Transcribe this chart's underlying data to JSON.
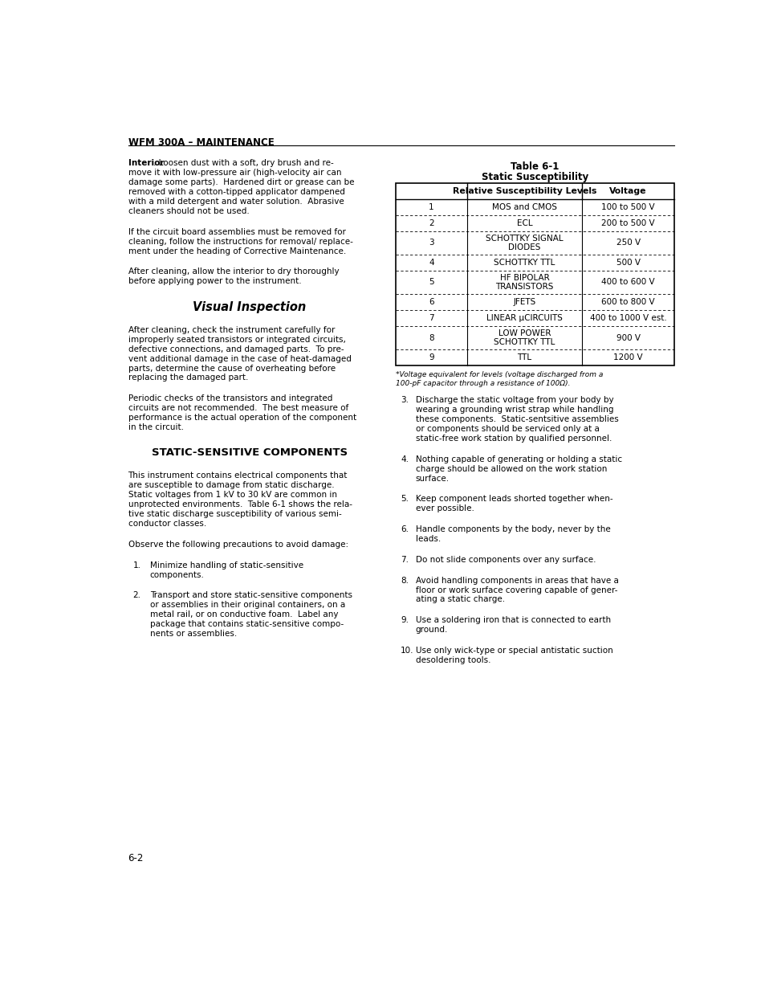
{
  "page_width": 9.54,
  "page_height": 12.35,
  "background_color": "#ffffff",
  "header": "WFM 300A – MAINTENANCE",
  "page_number": "6-2",
  "table_title": "Table 6-1",
  "table_subtitle": "Static Susceptibility",
  "table_col1_header": "Relative Susceptibility Levels",
  "table_col2_header": "Voltage",
  "table_rows": [
    [
      "1",
      "MOS and CMOS",
      "100 to 500 V"
    ],
    [
      "2",
      "ECL",
      "200 to 500 V"
    ],
    [
      "3",
      "SCHOTTKY SIGNAL\nDIODES",
      "250 V"
    ],
    [
      "4",
      "SCHOTTKY TTL",
      "500 V"
    ],
    [
      "5",
      "HF BIPOLAR\nTRANSISTORS",
      "400 to 600 V"
    ],
    [
      "6",
      "JFETS",
      "600 to 800 V"
    ],
    [
      "7",
      "LINEAR μCIRCUITS",
      "400 to 1000 V est."
    ],
    [
      "8",
      "LOW POWER\nSCHOTTKY TTL",
      "900 V"
    ],
    [
      "9",
      "TTL",
      "1200 V"
    ]
  ],
  "table_footnote": "*Voltage equivalent for levels (voltage discharged from a\n100-pF capacitor through a resistance of 100Ω).",
  "left_paragraphs": [
    {
      "type": "body_bold_start",
      "bold_word": "Interior",
      "text": ". Loosen dust with a soft, dry brush and re-\nmove it with low-pressure air (high-velocity air can\ndamage some parts).  Hardened dirt or grease can be\nremoved with a cotton-tipped applicator dampened\nwith a mild detergent and water solution.  Abrasive\ncleaners should not be used."
    },
    {
      "type": "body",
      "text": "If the circuit board assemblies must be removed for\ncleaning, follow the instructions for removal/ replace-\nment under the heading of Corrective Maintenance."
    },
    {
      "type": "body",
      "text": "After cleaning, allow the interior to dry thoroughly\nbefore applying power to the instrument."
    },
    {
      "type": "section_header",
      "text": "Visual Inspection"
    },
    {
      "type": "body",
      "text": "After cleaning, check the instrument carefully for\nimproperly seated transistors or integrated circuits,\ndefective connections, and damaged parts.  To pre-\nvent additional damage in the case of heat-damaged\nparts, determine the cause of overheating before\nreplacing the damaged part."
    },
    {
      "type": "body",
      "text": "Periodic checks of the transistors and integrated\ncircuits are not recommended.  The best measure of\nperformance is the actual operation of the component\nin the circuit."
    },
    {
      "type": "section_header_bold",
      "text": "STATIC-SENSITIVE COMPONENTS"
    },
    {
      "type": "body",
      "text": "This instrument contains electrical components that\nare susceptible to damage from static discharge.\nStatic voltages from 1 kV to 30 kV are common in\nunprotected environments.  Table 6-1 shows the rela-\ntive static discharge susceptibility of various semi-\nconductor classes."
    },
    {
      "type": "body",
      "text": "Observe the following precautions to avoid damage:"
    },
    {
      "type": "numbered",
      "number": "1.",
      "text": "Minimize handling of static-sensitive\ncomponents."
    },
    {
      "type": "numbered",
      "number": "2.",
      "text": "Transport and store static-sensitive components\nor assemblies in their original containers, on a\nmetal rail, or on conductive foam.  Label any\npackage that contains static-sensitive compo-\nnents or assemblies."
    }
  ],
  "right_paragraphs": [
    {
      "type": "numbered",
      "number": "3.",
      "text": "Discharge the static voltage from your body by\nwearing a grounding wrist strap while handling\nthese components.  Static-sentsitive assemblies\nor components should be serviced only at a\nstatic-free work station by qualified personnel."
    },
    {
      "type": "numbered",
      "number": "4.",
      "text": "Nothing capable of generating or holding a static\ncharge should be allowed on the work station\nsurface."
    },
    {
      "type": "numbered",
      "number": "5.",
      "text": "Keep component leads shorted together when-\never possible."
    },
    {
      "type": "numbered",
      "number": "6.",
      "text": "Handle components by the body, never by the\nleads."
    },
    {
      "type": "numbered",
      "number": "7.",
      "text": "Do not slide components over any surface."
    },
    {
      "type": "numbered",
      "number": "8.",
      "text": "Avoid handling components in areas that have a\nfloor or work surface covering capable of gener-\nating a static charge."
    },
    {
      "type": "numbered",
      "number": "9.",
      "text": "Use a soldering iron that is connected to earth\nground."
    },
    {
      "type": "numbered",
      "number": "10.",
      "text": "Use only wick-type or special antistatic suction\ndesoldering tools."
    }
  ]
}
